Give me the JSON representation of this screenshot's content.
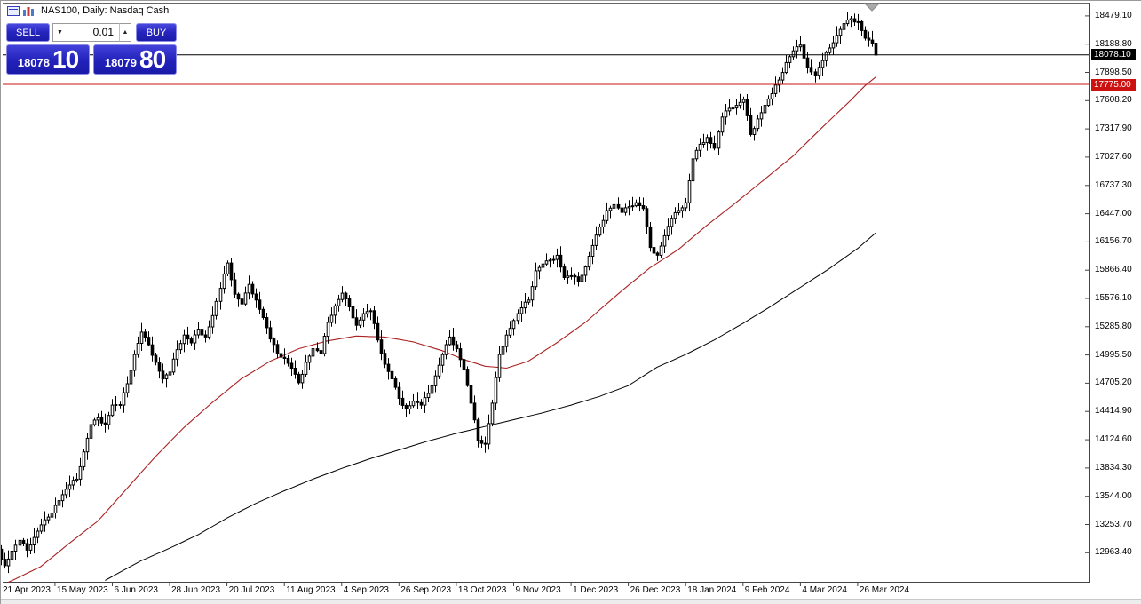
{
  "header": {
    "title": "NAS100, Daily: Nasdaq Cash"
  },
  "trade_panel": {
    "sell_label": "SELL",
    "buy_label": "BUY",
    "volume_value": "0.01",
    "volume_down_glyph": "▼",
    "volume_up_glyph": "▲",
    "bid": {
      "main": "18078",
      "big": "10"
    },
    "ask": {
      "main": "18079",
      "big": "80"
    }
  },
  "price_axis": {
    "labels": [
      "18479.10",
      "18188.80",
      "17898.50",
      "17608.20",
      "17317.90",
      "17027.60",
      "16737.30",
      "16447.00",
      "16156.70",
      "15866.40",
      "15576.10",
      "15285.80",
      "14995.50",
      "14705.20",
      "14414.90",
      "14124.60",
      "13834.30",
      "13544.00",
      "13253.70",
      "12963.40"
    ],
    "badges": [
      {
        "text": "18078.10",
        "price": 18078.1,
        "bg": "#000000"
      },
      {
        "text": "17775.00",
        "price": 17775.0,
        "bg": "#cc1111"
      }
    ]
  },
  "time_axis": {
    "labels": [
      "21 Apr 2023",
      "15 May 2023",
      "6 Jun 2023",
      "28 Jun 2023",
      "20 Jul 2023",
      "11 Aug 2023",
      "4 Sep 2023",
      "26 Sep 2023",
      "18 Oct 2023",
      "9 Nov 2023",
      "1 Dec 2023",
      "26 Dec 2023",
      "18 Jan 2024",
      "9 Feb 2024",
      "4 Mar 2024",
      "26 Mar 2024"
    ],
    "bars_per_label": 16
  },
  "chart_data": {
    "type": "candlestick",
    "symbol": "NAS100",
    "timeframe": "Daily",
    "description": "Nasdaq Cash",
    "ylim": [
      12665,
      18615
    ],
    "visible_high": 18490,
    "visible_low": 12700,
    "bars_total": 246,
    "sample_step_bars": 2,
    "closes_every_2_bars": [
      13000,
      12830,
      12980,
      13090,
      12990,
      13120,
      13250,
      13330,
      13450,
      13560,
      13660,
      13720,
      14000,
      14280,
      14350,
      14280,
      14480,
      14480,
      14700,
      15000,
      15230,
      15100,
      14920,
      14750,
      14820,
      15050,
      15200,
      15120,
      15260,
      15180,
      15400,
      15680,
      15940,
      15620,
      15520,
      15720,
      15560,
      15380,
      15160,
      15010,
      14960,
      14860,
      14710,
      14920,
      15060,
      15010,
      15330,
      15500,
      15630,
      15490,
      15300,
      15420,
      15450,
      15150,
      14900,
      14750,
      14550,
      14440,
      14520,
      14480,
      14600,
      14780,
      15000,
      15180,
      15060,
      14850,
      14500,
      14120,
      14080,
      14500,
      15000,
      15200,
      15350,
      15480,
      15560,
      15860,
      15930,
      15970,
      16020,
      15790,
      15810,
      15750,
      15900,
      16120,
      16310,
      16480,
      16540,
      16460,
      16520,
      16560,
      16500,
      16100,
      16020,
      16220,
      16400,
      16480,
      16560,
      17010,
      17160,
      17230,
      17120,
      17440,
      17530,
      17560,
      17620,
      17260,
      17420,
      17560,
      17680,
      17820,
      18000,
      18120,
      18180,
      17950,
      17870,
      18020,
      18150,
      18280,
      18400,
      18450,
      18420,
      18250,
      18200
    ],
    "last_close": 18078.1,
    "price_lines": [
      {
        "name": "current-price-line",
        "price": 18078.1,
        "color": "#000000"
      },
      {
        "name": "horizontal-level-line",
        "price": 17775.0,
        "color": "#c81414"
      }
    ],
    "ma_fast": {
      "color": "#aa2222",
      "points": [
        [
          3,
          12660
        ],
        [
          12,
          12820
        ],
        [
          20,
          13060
        ],
        [
          28,
          13290
        ],
        [
          36,
          13620
        ],
        [
          44,
          13950
        ],
        [
          52,
          14250
        ],
        [
          60,
          14510
        ],
        [
          68,
          14750
        ],
        [
          76,
          14930
        ],
        [
          84,
          15060
        ],
        [
          92,
          15140
        ],
        [
          100,
          15190
        ],
        [
          108,
          15180
        ],
        [
          116,
          15130
        ],
        [
          124,
          15040
        ],
        [
          130,
          14950
        ],
        [
          136,
          14880
        ],
        [
          142,
          14860
        ],
        [
          148,
          14930
        ],
        [
          156,
          15120
        ],
        [
          164,
          15330
        ],
        [
          174,
          15650
        ],
        [
          182,
          15890
        ],
        [
          190,
          16080
        ],
        [
          198,
          16330
        ],
        [
          206,
          16560
        ],
        [
          214,
          16800
        ],
        [
          222,
          17040
        ],
        [
          230,
          17330
        ],
        [
          238,
          17610
        ],
        [
          242,
          17760
        ],
        [
          245,
          17850
        ]
      ]
    },
    "ma_slow": {
      "color": "#000000",
      "points": [
        [
          30,
          12680
        ],
        [
          40,
          12880
        ],
        [
          48,
          13010
        ],
        [
          56,
          13150
        ],
        [
          64,
          13320
        ],
        [
          72,
          13470
        ],
        [
          80,
          13600
        ],
        [
          88,
          13720
        ],
        [
          96,
          13830
        ],
        [
          104,
          13930
        ],
        [
          112,
          14020
        ],
        [
          120,
          14110
        ],
        [
          128,
          14190
        ],
        [
          136,
          14260
        ],
        [
          144,
          14330
        ],
        [
          152,
          14400
        ],
        [
          160,
          14480
        ],
        [
          168,
          14570
        ],
        [
          176,
          14680
        ],
        [
          184,
          14870
        ],
        [
          192,
          15000
        ],
        [
          200,
          15150
        ],
        [
          208,
          15320
        ],
        [
          216,
          15500
        ],
        [
          224,
          15690
        ],
        [
          232,
          15880
        ],
        [
          240,
          16090
        ],
        [
          245,
          16250
        ]
      ]
    },
    "colors": {
      "up_candle_fill": "#ffffff",
      "down_candle_fill": "#000000",
      "candle_border": "#000000",
      "shift_marker": "#aaaaaa"
    }
  }
}
